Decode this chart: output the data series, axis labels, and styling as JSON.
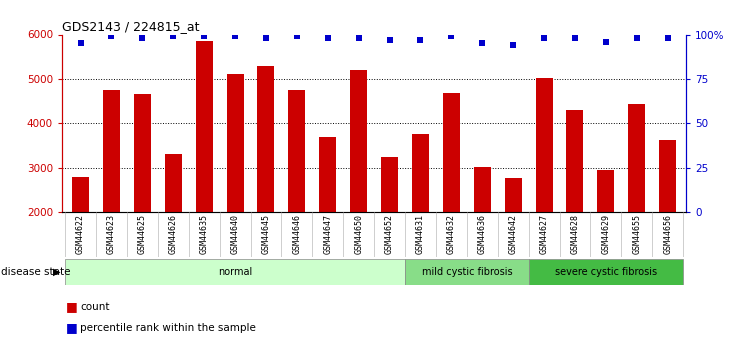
{
  "title": "GDS2143 / 224815_at",
  "samples": [
    "GSM44622",
    "GSM44623",
    "GSM44625",
    "GSM44626",
    "GSM44635",
    "GSM44640",
    "GSM44645",
    "GSM44646",
    "GSM44647",
    "GSM44650",
    "GSM44652",
    "GSM44631",
    "GSM44632",
    "GSM44636",
    "GSM44642",
    "GSM44627",
    "GSM44628",
    "GSM44629",
    "GSM44655",
    "GSM44656"
  ],
  "counts": [
    2800,
    4750,
    4650,
    3300,
    5850,
    5100,
    5280,
    4750,
    3700,
    5200,
    3250,
    3750,
    4680,
    3020,
    2770,
    5030,
    4290,
    2950,
    4430,
    3620
  ],
  "percentiles": [
    95,
    99,
    98,
    99,
    99,
    99,
    98,
    99,
    98,
    98,
    97,
    97,
    99,
    95,
    94,
    98,
    98,
    96,
    98,
    98
  ],
  "bar_color": "#cc0000",
  "dot_color": "#0000cc",
  "ylim_left": [
    2000,
    6000
  ],
  "ylim_right": [
    0,
    100
  ],
  "yticks_left": [
    2000,
    3000,
    4000,
    5000,
    6000
  ],
  "yticks_right": [
    0,
    25,
    50,
    75,
    100
  ],
  "ytick_labels_right": [
    "0",
    "25",
    "50",
    "75",
    "100%"
  ],
  "groups": [
    {
      "label": "normal",
      "start": 0,
      "end": 11,
      "color": "#ccffcc"
    },
    {
      "label": "mild cystic fibrosis",
      "start": 11,
      "end": 15,
      "color": "#88dd88"
    },
    {
      "label": "severe cystic fibrosis",
      "start": 15,
      "end": 20,
      "color": "#44bb44"
    }
  ],
  "group_row_label": "disease state",
  "legend_count_label": "count",
  "legend_pct_label": "percentile rank within the sample",
  "bg_color": "#ffffff",
  "plot_bg_color": "#ffffff",
  "xtick_bg_color": "#d8d8d8",
  "dotted_lines": [
    3000,
    4000,
    5000
  ]
}
